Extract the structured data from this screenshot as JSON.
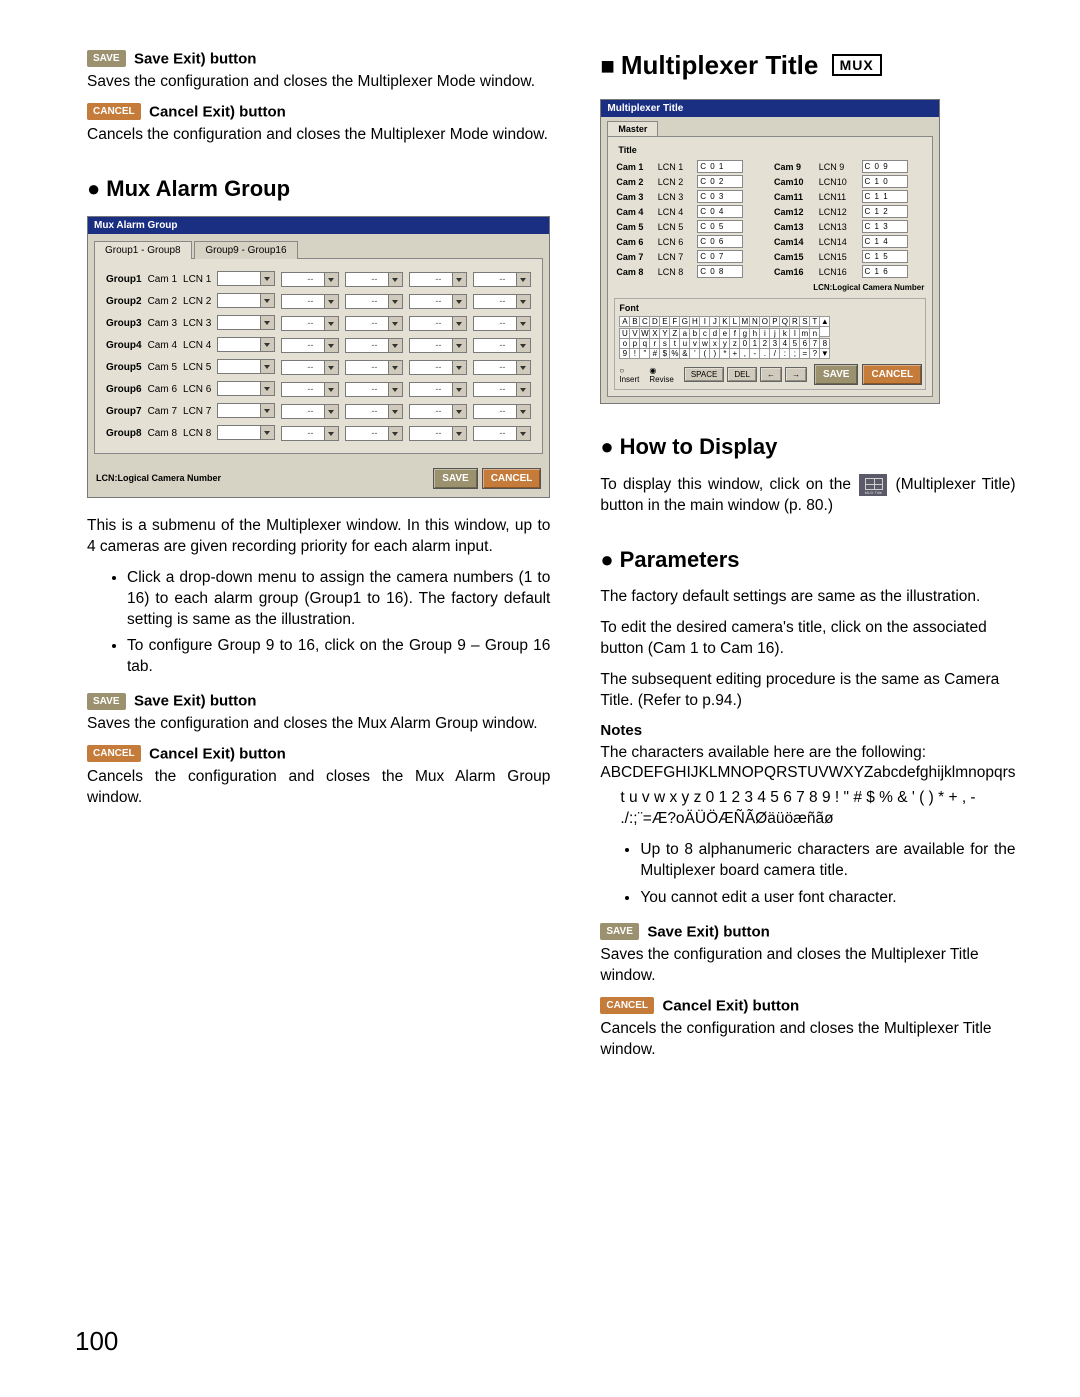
{
  "left": {
    "save1": {
      "badge": "SAVE",
      "label": "Save Exit) button",
      "text": "Saves the configuration and closes the Multiplexer Mode window."
    },
    "cancel1": {
      "badge": "CANCEL",
      "label": "Cancel Exit) button",
      "text": "Cancels the configuration and closes the Multiplexer Mode window."
    },
    "h_mux_alarm": "Mux Alarm Group",
    "alarm_win_title": "Mux Alarm Group",
    "tab1": "Group1 - Group8",
    "tab2": "Group9 - Group16",
    "groups": [
      {
        "g": "Group1",
        "cam": "Cam 1",
        "lcn": "LCN 1"
      },
      {
        "g": "Group2",
        "cam": "Cam 2",
        "lcn": "LCN 2"
      },
      {
        "g": "Group3",
        "cam": "Cam 3",
        "lcn": "LCN 3"
      },
      {
        "g": "Group4",
        "cam": "Cam 4",
        "lcn": "LCN 4"
      },
      {
        "g": "Group5",
        "cam": "Cam 5",
        "lcn": "LCN 5"
      },
      {
        "g": "Group6",
        "cam": "Cam 6",
        "lcn": "LCN 6"
      },
      {
        "g": "Group7",
        "cam": "Cam 7",
        "lcn": "LCN 7"
      },
      {
        "g": "Group8",
        "cam": "Cam 8",
        "lcn": "LCN 8"
      }
    ],
    "dash": "--",
    "lcn_note": "LCN:Logical Camera Number",
    "btn_save": "SAVE",
    "btn_cancel": "CANCEL",
    "intro": "This is a submenu of the Multiplexer window. In this window, up to 4 cameras are given recording priority for each alarm input.",
    "b1": "Click a drop-down menu to assign the camera numbers (1 to 16) to each alarm group (Group1 to 16). The factory default setting is same as the illustration.",
    "b2": "To configure Group 9 to 16, click on the Group 9 – Group 16 tab.",
    "save2": {
      "badge": "SAVE",
      "label": "Save Exit) button",
      "text": "Saves the configuration and closes the Mux Alarm Group window."
    },
    "cancel2": {
      "badge": "CANCEL",
      "label": "Cancel Exit) button",
      "text": "Cancels the configuration and closes the Mux Alarm Group window."
    }
  },
  "right": {
    "h_title": "Multiplexer Title",
    "mux_badge": "MUX",
    "titlewin": {
      "winTitle": "Multiplexer Title",
      "tab": "Master",
      "t": "Title",
      "cams": [
        {
          "a": "Cam 1",
          "al": "LCN 1",
          "av": "C 0 1",
          "b": "Cam 9",
          "bl": "LCN 9",
          "bv": "C 0 9"
        },
        {
          "a": "Cam 2",
          "al": "LCN 2",
          "av": "C 0 2",
          "b": "Cam10",
          "bl": "LCN10",
          "bv": "C 1 0"
        },
        {
          "a": "Cam 3",
          "al": "LCN 3",
          "av": "C 0 3",
          "b": "Cam11",
          "bl": "LCN11",
          "bv": "C 1 1"
        },
        {
          "a": "Cam 4",
          "al": "LCN 4",
          "av": "C 0 4",
          "b": "Cam12",
          "bl": "LCN12",
          "bv": "C 1 2"
        },
        {
          "a": "Cam 5",
          "al": "LCN 5",
          "av": "C 0 5",
          "b": "Cam13",
          "bl": "LCN13",
          "bv": "C 1 3"
        },
        {
          "a": "Cam 6",
          "al": "LCN 6",
          "av": "C 0 6",
          "b": "Cam14",
          "bl": "LCN14",
          "bv": "C 1 4"
        },
        {
          "a": "Cam 7",
          "al": "LCN 7",
          "av": "C 0 7",
          "b": "Cam15",
          "bl": "LCN15",
          "bv": "C 1 5"
        },
        {
          "a": "Cam 8",
          "al": "LCN 8",
          "av": "C 0 8",
          "b": "Cam16",
          "bl": "LCN16",
          "bv": "C 1 6"
        }
      ],
      "lcn_note": "LCN:Logical Camera Number",
      "font": "Font",
      "row1": "ABCDEFGHIJKLMNOPQRST▲",
      "row2": "UVWXYZabcdefghijklmn ",
      "row3": "opqrstuvwxyz012345678",
      "row4": "9!\"#$%&'()*+,-./:;=?▼",
      "r_insert": "Insert",
      "r_revise": "Revise",
      "b_space": "SPACE",
      "b_del": "DEL",
      "b_left": "←",
      "b_right": "→",
      "b_save": "SAVE",
      "b_cancel": "CANCEL"
    },
    "h_how": "How to Display",
    "how1": "To display this window, click on the ",
    "how2": " (Multiplexer Title) button in the main window (p. 80.)",
    "h_param": "Parameters",
    "p1": "The factory default settings are same as the illustration.",
    "p2": "To edit the desired camera's title, click on the associated button (Cam 1 to Cam 16).",
    "p3": "The subsequent editing procedure is the same as Camera Title. (Refer to p.94.)",
    "notes": "Notes",
    "n1": "The characters available here are the following:",
    "n2": "ABCDEFGHIJKLMNOPQRSTUVWXYZabcdefghijklmnopqrs",
    "n3": "t u v w x y z 0 1 2 3 4 5 6 7 8 9 ! \" # $ % & ' ( ) * + , - ./:;¨=Æ?oÄÜÖÆÑÃØäüöæñãø",
    "nb1": "Up to 8 alphanumeric characters are available for the Multiplexer board camera title.",
    "nb2": "You cannot edit a user font character.",
    "save": {
      "badge": "SAVE",
      "label": "Save Exit) button",
      "text": "Saves the configuration and closes the Multiplexer Title window."
    },
    "cancel": {
      "badge": "CANCEL",
      "label": "Cancel Exit) button",
      "text": "Cancels the configuration and closes the Multiplexer Title window."
    }
  },
  "pagenum": "100"
}
